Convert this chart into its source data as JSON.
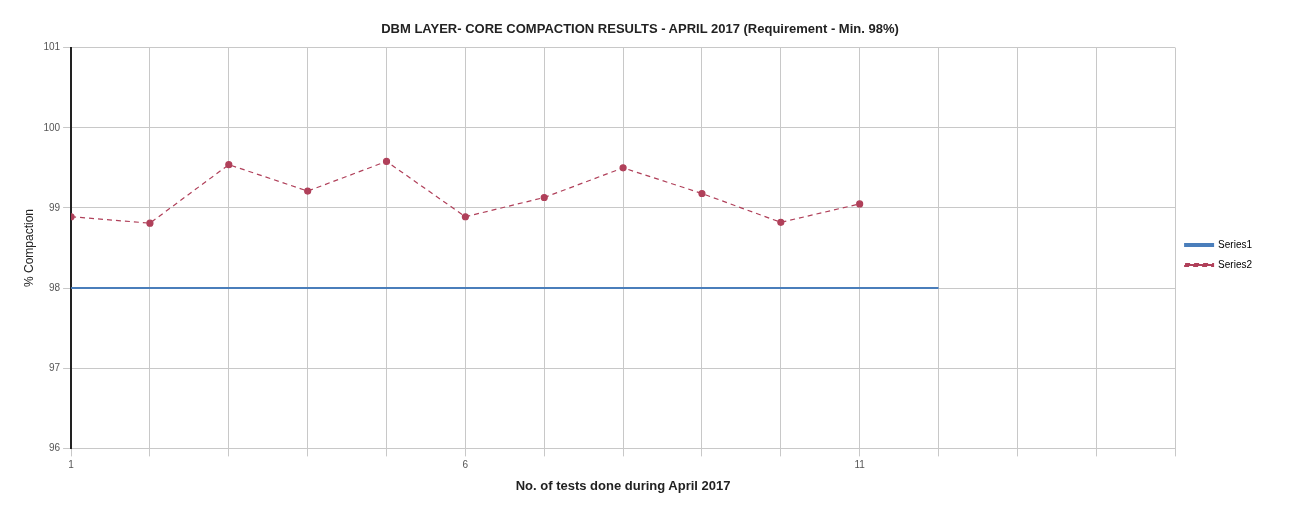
{
  "chart_data": {
    "type": "line",
    "title": "DBM LAYER- CORE COMPACTION RESULTS - APRIL 2017 (Requirement - Min. 98%)",
    "xlabel": "No. of tests done during April 2017",
    "ylabel": "% Compaction",
    "series": [
      {
        "name": "Series1",
        "color": "#4a7ebb",
        "x": [
          1,
          2,
          3,
          4,
          5,
          6,
          7,
          8,
          9,
          10,
          11,
          12
        ],
        "values": [
          98,
          98,
          98,
          98,
          98,
          98,
          98,
          98,
          98,
          98,
          98,
          98
        ],
        "marker": "none",
        "line_style": "solid"
      },
      {
        "name": "Series2",
        "color": "#b0405a",
        "x": [
          1,
          2,
          3,
          4,
          5,
          6,
          7,
          8,
          9,
          10,
          11
        ],
        "values": [
          98.89,
          98.81,
          99.54,
          99.21,
          99.58,
          98.89,
          99.13,
          99.5,
          99.18,
          98.82,
          99.05
        ],
        "marker": "circle",
        "line_style": "dashed"
      }
    ],
    "xlim": [
      1,
      15
    ],
    "xticks": [
      1,
      {
        "value": 2,
        "label": null
      },
      {
        "value": 3,
        "label": null
      },
      {
        "value": 4,
        "label": null
      },
      {
        "value": 5,
        "label": null
      },
      6,
      {
        "value": 7,
        "label": null
      },
      {
        "value": 8,
        "label": null
      },
      {
        "value": 9,
        "label": null
      },
      {
        "value": 10,
        "label": null
      },
      11,
      {
        "value": 12,
        "label": null
      },
      {
        "value": 13,
        "label": null
      },
      {
        "value": 14,
        "label": null
      },
      {
        "value": 15,
        "label": null
      }
    ],
    "ylim": [
      96,
      101
    ],
    "yticks": [
      96,
      97,
      98,
      99,
      100,
      101
    ],
    "grid": true,
    "legend": "right"
  }
}
